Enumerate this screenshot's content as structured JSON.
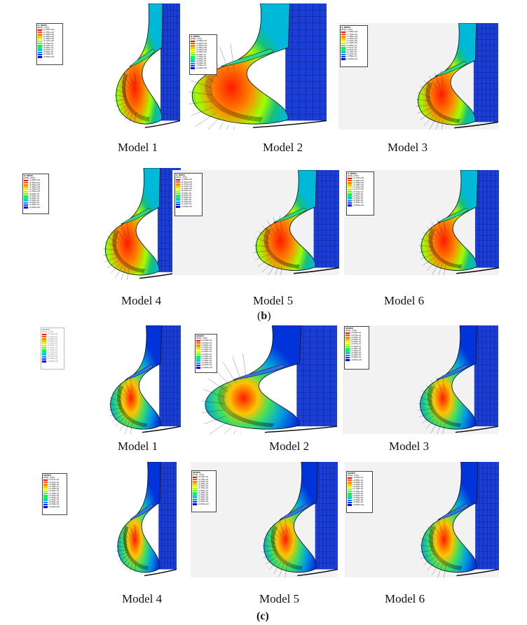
{
  "panels": [
    {
      "label": "Model 1",
      "legend_title": "S, Mises",
      "legend_subtitle": "(Avg: 75%)",
      "legend_values": [
        "+1.950e+00",
        "+1.787e+00",
        "+1.625e+00",
        "+1.462e+00",
        "+1.300e+00",
        "+1.137e+00",
        "+9.750e-01",
        "+8.125e-01",
        "+6.500e-01",
        "+4.875e-01",
        "+3.250e-01",
        "+1.625e-01",
        "+0.000e+00"
      ]
    },
    {
      "label": "Model 2",
      "legend_title": "S, Mises",
      "legend_subtitle": "(Avg: 75%)",
      "legend_values": [
        "+1.800e+00",
        "+1.650e+00",
        "+1.500e+00",
        "+1.350e+00",
        "+1.200e+00",
        "+1.050e+00",
        "+9.000e-01",
        "+7.500e-01",
        "+6.000e-01",
        "+4.500e-01",
        "+3.000e-01",
        "+1.500e-01",
        "+0.000e+00"
      ]
    },
    {
      "label": "Model 3",
      "legend_title": "S, Mises",
      "legend_subtitle": "(Avg: 75%)",
      "legend_values": [
        "+1.900e+00",
        "+1.742e+00",
        "+1.583e+00",
        "+1.425e+00",
        "+1.267e+00",
        "+1.108e+00",
        "+9.500e-01",
        "+7.917e-01",
        "+6.333e-01",
        "+4.750e-01",
        "+3.167e-01",
        "+1.583e-01",
        "+0.000e+00"
      ]
    },
    {
      "label": "Model 4",
      "legend_title": "S, Mises",
      "legend_subtitle": "(Avg: 75%)",
      "legend_values": [
        "+1.800e+00",
        "+1.650e+00",
        "+1.500e+00",
        "+1.350e+00",
        "+1.200e+00",
        "+1.050e+00",
        "+9.000e-01",
        "+7.500e-01",
        "+6.000e-01",
        "+4.500e-01",
        "+3.000e-01",
        "+1.500e-01",
        "+0.000e+00"
      ]
    },
    {
      "label": "Model 5",
      "legend_title": "S, Mises",
      "legend_subtitle": "(Avg: 75%)",
      "legend_values": [
        "+1.650e+00",
        "+1.513e+00",
        "+1.375e+00",
        "+1.237e+00",
        "+1.100e+00",
        "+9.625e-01",
        "+8.250e-01",
        "+6.875e-01",
        "+5.500e-01",
        "+4.125e-01",
        "+2.750e-01",
        "+1.375e-01",
        "+0.000e+00"
      ]
    },
    {
      "label": "Model 6",
      "legend_title": "S, Mises",
      "legend_subtitle": "(Avg: 75%)",
      "legend_values": [
        "+1.744e+00",
        "+1.598e+00",
        "+1.453e+00",
        "+1.308e+00",
        "+1.162e+00",
        "+1.017e+00",
        "+8.718e-01",
        "+7.265e-01",
        "+5.812e-01",
        "+4.359e-01",
        "+2.906e-01",
        "+1.453e-01",
        "+0.000e+00"
      ]
    },
    {
      "label": "Model 1",
      "legend_title": "SENER",
      "legend_subtitle": "(Avg: 75%)",
      "legend_values": [
        "+5.143e-01",
        "+4.714e-01",
        "+4.286e-01",
        "+3.857e-01",
        "+3.429e-01",
        "+3.000e-01",
        "+2.571e-01",
        "+2.143e-01",
        "+1.714e-01",
        "+1.286e-01",
        "+8.571e-02",
        "+4.286e-02",
        "+0.000e+00"
      ]
    },
    {
      "label": "Model 2",
      "legend_title": "SENER",
      "legend_subtitle": "(Avg: 75%)",
      "legend_values": [
        "+6.000e-01",
        "+5.500e-01",
        "+5.000e-01",
        "+4.500e-01",
        "+4.000e-01",
        "+3.500e-01",
        "+3.000e-01",
        "+2.500e-01",
        "+2.000e-01",
        "+1.500e-01",
        "+1.000e-01",
        "+5.000e-02",
        "+0.000e+00"
      ]
    },
    {
      "label": "Model 3",
      "legend_title": "SENER",
      "legend_subtitle": "(Avg: 75%)",
      "legend_values": [
        "+3.900e-01",
        "+3.575e-01",
        "+3.250e-01",
        "+2.925e-01",
        "+2.600e-01",
        "+2.275e-01",
        "+1.950e-01",
        "+1.625e-01",
        "+1.300e-01",
        "+9.750e-02",
        "+6.500e-02",
        "+3.250e-02",
        "+0.000e+00"
      ]
    },
    {
      "label": "Model 4",
      "legend_title": "SENER",
      "legend_subtitle": "(Avg: 75%)",
      "legend_values": [
        "+5.577e-01",
        "+5.112e-01",
        "+4.648e-01",
        "+4.183e-01",
        "+3.718e-01",
        "+3.253e-01",
        "+2.789e-01",
        "+2.324e-01",
        "+1.859e-01",
        "+1.394e-01",
        "+9.295e-02",
        "+4.648e-02",
        "+0.000e+00"
      ]
    },
    {
      "label": "Model 5",
      "legend_title": "SENER",
      "legend_subtitle": "(Avg: 75%)",
      "legend_values": [
        "+3.000e-01",
        "+2.750e-01",
        "+2.500e-01",
        "+2.250e-01",
        "+2.000e-01",
        "+1.750e-01",
        "+1.500e-01",
        "+1.250e-01",
        "+1.000e-01",
        "+7.500e-02",
        "+5.000e-02",
        "+2.500e-02",
        "+0.000e+00"
      ]
    },
    {
      "label": "Model 6",
      "legend_title": "SENER",
      "legend_subtitle": "(Avg: 75%)",
      "legend_values": [
        "+3.060e-01",
        "+2.805e-01",
        "+2.550e-01",
        "+2.295e-01",
        "+2.040e-01",
        "+1.785e-01",
        "+1.530e-01",
        "+1.275e-01",
        "+1.020e-01",
        "+7.650e-02",
        "+5.100e-02",
        "+2.550e-02",
        "+0.000e+00"
      ]
    }
  ],
  "subfigures": [
    {
      "open": "(",
      "letter": "b",
      "close": ")"
    },
    {
      "open": "",
      "letter": "(c)",
      "close": ""
    }
  ],
  "colors": {
    "legend_scale": [
      "#ff0000",
      "#ff4a00",
      "#ff8a00",
      "#ffc400",
      "#e8ff00",
      "#a6ff00",
      "#56ff00",
      "#00ff3a",
      "#00f0a0",
      "#00c8e6",
      "#0082ff",
      "#0034ff",
      "#0000ff"
    ],
    "stress_low": "#0033d9",
    "stress_mid": "#17c07a",
    "stress_high": "#ff1a00",
    "viewport_background": "#f2f2f2"
  }
}
